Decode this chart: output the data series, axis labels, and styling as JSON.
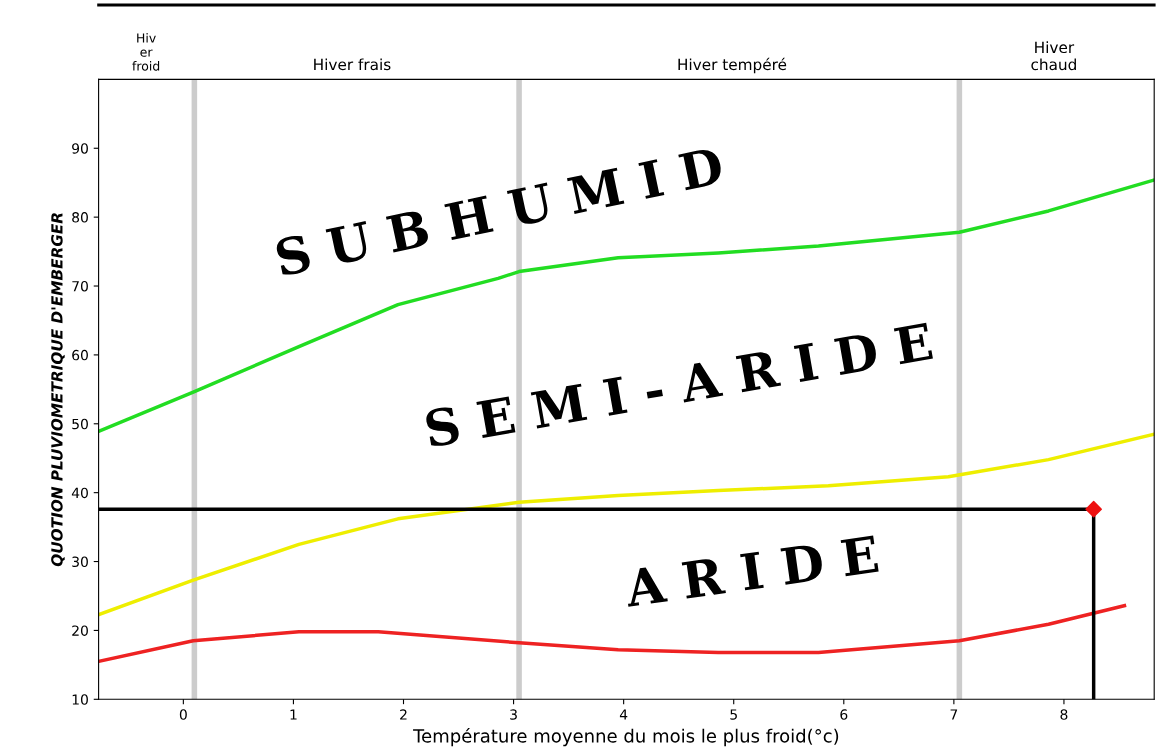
{
  "chart_data": {
    "type": "line",
    "xlabel": "Température moyenne du mois le plus froid(°c)",
    "ylabel": "QUOTION PLUVIOMETRIQUE D'EMBERGER",
    "xlim": [
      -0.77,
      8.82
    ],
    "ylim": [
      10,
      100
    ],
    "xticks": [
      0,
      1,
      2,
      3,
      4,
      5,
      6,
      7,
      8
    ],
    "yticks": [
      10,
      20,
      30,
      40,
      50,
      60,
      70,
      80,
      90
    ],
    "grid": false,
    "legend": false,
    "marker": "none",
    "line_style": "solid",
    "series": [
      {
        "color": "#22dd22",
        "x": [
          -0.77,
          0.09,
          1.05,
          1.95,
          2.86,
          3.05,
          3.95,
          4.86,
          5.77,
          7.05,
          7.86,
          8.82
        ],
        "values": [
          48.9,
          54.6,
          61.2,
          67.3,
          71.1,
          72.1,
          74.1,
          74.8,
          75.8,
          77.8,
          80.9,
          85.4
        ]
      },
      {
        "color": "#eeee00",
        "x": [
          -0.77,
          0.09,
          1.05,
          1.95,
          3.05,
          3.95,
          4.86,
          5.86,
          6.95,
          7.86,
          8.82
        ],
        "values": [
          22.3,
          27.3,
          32.5,
          36.2,
          38.6,
          39.6,
          40.3,
          41.0,
          42.3,
          44.8,
          48.5
        ]
      },
      {
        "color": "#ee2222",
        "x": [
          -0.77,
          0.09,
          1.05,
          1.77,
          3.05,
          3.95,
          4.86,
          5.77,
          7.05,
          7.86,
          8.55
        ],
        "values": [
          15.5,
          18.5,
          19.8,
          19.8,
          18.2,
          17.2,
          16.8,
          16.8,
          18.5,
          20.9,
          23.6
        ]
      },
      {
        "color": "#000000",
        "x": [
          -0.77,
          8.27,
          8.27
        ],
        "values": [
          37.6,
          37.6,
          10
        ]
      },
      {
        "type": "scatter",
        "marker": "diamond",
        "color": "#ee1111",
        "x": [
          8.27
        ],
        "values": [
          37.6
        ]
      }
    ],
    "ref_lines": [
      {
        "axis": "x",
        "value": 0.1,
        "color": "#cccccc"
      },
      {
        "axis": "x",
        "value": 3.05,
        "color": "#cccccc"
      },
      {
        "axis": "x",
        "value": 7.05,
        "color": "#cccccc"
      }
    ],
    "annotations": [
      "S U B H U M I D",
      "S E M I - A R I D E",
      "A R I D E",
      "Hiv\ner\nfroid",
      "Hiver frais",
      "Hiver tempéré",
      "Hiver\nchaud"
    ]
  }
}
